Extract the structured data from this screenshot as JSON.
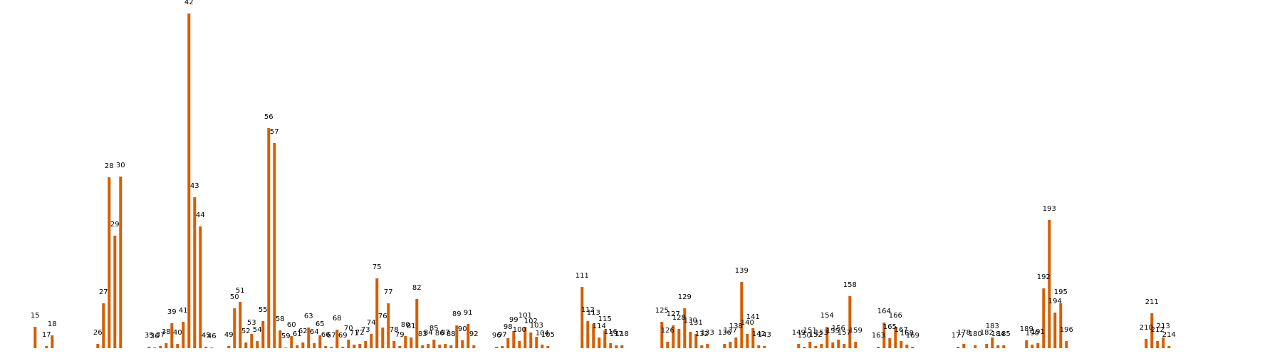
{
  "colors": {
    "bar": "#d55e00",
    "background": "#ffffff",
    "label": "#000000"
  },
  "chart_data": {
    "type": "bar",
    "title": "",
    "xlabel": "",
    "ylabel": "",
    "grid": false,
    "axes_visible": false,
    "x_range": [
      10,
      220
    ],
    "ylim": [
      0,
      460
    ],
    "bars": [
      {
        "x": 15,
        "value": 30,
        "label": "15"
      },
      {
        "x": 17,
        "value": 3,
        "label": "17"
      },
      {
        "x": 18,
        "value": 18,
        "label": "18"
      },
      {
        "x": 26,
        "value": 6,
        "label": "26"
      },
      {
        "x": 27,
        "value": 63,
        "label": "27"
      },
      {
        "x": 28,
        "value": 240,
        "label": "28"
      },
      {
        "x": 29,
        "value": 158,
        "label": "29"
      },
      {
        "x": 30,
        "value": 241,
        "label": "30"
      },
      {
        "x": 35,
        "value": 2,
        "label": "35"
      },
      {
        "x": 36,
        "value": 1,
        "label": "36"
      },
      {
        "x": 37,
        "value": 3,
        "label": "37"
      },
      {
        "x": 38,
        "value": 7,
        "label": "38"
      },
      {
        "x": 39,
        "value": 35,
        "label": "39"
      },
      {
        "x": 40,
        "value": 6,
        "label": "40"
      },
      {
        "x": 41,
        "value": 37,
        "label": "41"
      },
      {
        "x": 42,
        "value": 470,
        "label": "42"
      },
      {
        "x": 43,
        "value": 212,
        "label": "43"
      },
      {
        "x": 44,
        "value": 171,
        "label": "44"
      },
      {
        "x": 45,
        "value": 2,
        "label": "45"
      },
      {
        "x": 46,
        "value": 1,
        "label": "46"
      },
      {
        "x": 49,
        "value": 3,
        "label": "49"
      },
      {
        "x": 50,
        "value": 56,
        "label": "50"
      },
      {
        "x": 51,
        "value": 65,
        "label": "51"
      },
      {
        "x": 52,
        "value": 8,
        "label": "52"
      },
      {
        "x": 53,
        "value": 20,
        "label": "53"
      },
      {
        "x": 54,
        "value": 10,
        "label": "54"
      },
      {
        "x": 55,
        "value": 38,
        "label": "55"
      },
      {
        "x": 56,
        "value": 309,
        "label": "56"
      },
      {
        "x": 57,
        "value": 288,
        "label": "57"
      },
      {
        "x": 58,
        "value": 25,
        "label": "58"
      },
      {
        "x": 59,
        "value": 1,
        "label": "59"
      },
      {
        "x": 60,
        "value": 17,
        "label": "60"
      },
      {
        "x": 61,
        "value": 4,
        "label": "61"
      },
      {
        "x": 62,
        "value": 8,
        "label": "62"
      },
      {
        "x": 63,
        "value": 29,
        "label": "63"
      },
      {
        "x": 64,
        "value": 7,
        "label": "64"
      },
      {
        "x": 65,
        "value": 18,
        "label": "65"
      },
      {
        "x": 66,
        "value": 3,
        "label": "66"
      },
      {
        "x": 67,
        "value": 2,
        "label": "67"
      },
      {
        "x": 68,
        "value": 26,
        "label": "68"
      },
      {
        "x": 69,
        "value": 2,
        "label": "69"
      },
      {
        "x": 70,
        "value": 12,
        "label": "70"
      },
      {
        "x": 71,
        "value": 5,
        "label": "71"
      },
      {
        "x": 72,
        "value": 6,
        "label": "72"
      },
      {
        "x": 73,
        "value": 10,
        "label": "73"
      },
      {
        "x": 74,
        "value": 20,
        "label": "74"
      },
      {
        "x": 75,
        "value": 98,
        "label": "75"
      },
      {
        "x": 76,
        "value": 29,
        "label": "76"
      },
      {
        "x": 77,
        "value": 63,
        "label": "77"
      },
      {
        "x": 78,
        "value": 10,
        "label": "78"
      },
      {
        "x": 79,
        "value": 3,
        "label": "79"
      },
      {
        "x": 80,
        "value": 17,
        "label": "80"
      },
      {
        "x": 81,
        "value": 15,
        "label": "81"
      },
      {
        "x": 82,
        "value": 69,
        "label": "82"
      },
      {
        "x": 83,
        "value": 4,
        "label": "83"
      },
      {
        "x": 84,
        "value": 6,
        "label": "84"
      },
      {
        "x": 85,
        "value": 12,
        "label": "85"
      },
      {
        "x": 86,
        "value": 5,
        "label": "86"
      },
      {
        "x": 87,
        "value": 6,
        "label": "87"
      },
      {
        "x": 88,
        "value": 4,
        "label": "88"
      },
      {
        "x": 89,
        "value": 32,
        "label": "89"
      },
      {
        "x": 90,
        "value": 11,
        "label": "90"
      },
      {
        "x": 91,
        "value": 34,
        "label": "91"
      },
      {
        "x": 92,
        "value": 4,
        "label": "92"
      },
      {
        "x": 96,
        "value": 2,
        "label": "96"
      },
      {
        "x": 97,
        "value": 3,
        "label": "97"
      },
      {
        "x": 98,
        "value": 14,
        "label": "98"
      },
      {
        "x": 99,
        "value": 24,
        "label": "99"
      },
      {
        "x": 100,
        "value": 10,
        "label": "100"
      },
      {
        "x": 101,
        "value": 30,
        "label": "101"
      },
      {
        "x": 102,
        "value": 22,
        "label": "102"
      },
      {
        "x": 103,
        "value": 16,
        "label": "103"
      },
      {
        "x": 104,
        "value": 5,
        "label": "104"
      },
      {
        "x": 105,
        "value": 3,
        "label": "105"
      },
      {
        "x": 111,
        "value": 86,
        "label": "111"
      },
      {
        "x": 112,
        "value": 38,
        "label": "112"
      },
      {
        "x": 113,
        "value": 34,
        "label": "113"
      },
      {
        "x": 114,
        "value": 15,
        "label": "114"
      },
      {
        "x": 115,
        "value": 25,
        "label": "115"
      },
      {
        "x": 116,
        "value": 7,
        "label": "116"
      },
      {
        "x": 117,
        "value": 4,
        "label": "117"
      },
      {
        "x": 118,
        "value": 4,
        "label": "118"
      },
      {
        "x": 125,
        "value": 37,
        "label": "125"
      },
      {
        "x": 126,
        "value": 9,
        "label": "126"
      },
      {
        "x": 127,
        "value": 32,
        "label": "127"
      },
      {
        "x": 128,
        "value": 27,
        "label": "128"
      },
      {
        "x": 129,
        "value": 56,
        "label": "129"
      },
      {
        "x": 130,
        "value": 23,
        "label": "130"
      },
      {
        "x": 131,
        "value": 20,
        "label": "131"
      },
      {
        "x": 132,
        "value": 4,
        "label": "132"
      },
      {
        "x": 133,
        "value": 6,
        "label": "133"
      },
      {
        "x": 136,
        "value": 6,
        "label": "136"
      },
      {
        "x": 137,
        "value": 9,
        "label": "137"
      },
      {
        "x": 138,
        "value": 15,
        "label": "138"
      },
      {
        "x": 139,
        "value": 93,
        "label": "139"
      },
      {
        "x": 140,
        "value": 20,
        "label": "140"
      },
      {
        "x": 141,
        "value": 28,
        "label": "141"
      },
      {
        "x": 142,
        "value": 4,
        "label": "142"
      },
      {
        "x": 143,
        "value": 3,
        "label": "143"
      },
      {
        "x": 149,
        "value": 6,
        "label": "149"
      },
      {
        "x": 150,
        "value": 2,
        "label": "150"
      },
      {
        "x": 151,
        "value": 9,
        "label": "151"
      },
      {
        "x": 152,
        "value": 3,
        "label": "152"
      },
      {
        "x": 153,
        "value": 6,
        "label": "153"
      },
      {
        "x": 154,
        "value": 30,
        "label": "154"
      },
      {
        "x": 155,
        "value": 8,
        "label": "155"
      },
      {
        "x": 156,
        "value": 12,
        "label": "156"
      },
      {
        "x": 157,
        "value": 6,
        "label": "157"
      },
      {
        "x": 158,
        "value": 73,
        "label": "158"
      },
      {
        "x": 159,
        "value": 9,
        "label": "159"
      },
      {
        "x": 163,
        "value": 2,
        "label": "163"
      },
      {
        "x": 164,
        "value": 36,
        "label": "164"
      },
      {
        "x": 165,
        "value": 14,
        "label": "165"
      },
      {
        "x": 166,
        "value": 30,
        "label": "166"
      },
      {
        "x": 167,
        "value": 10,
        "label": "167"
      },
      {
        "x": 168,
        "value": 5,
        "label": "168"
      },
      {
        "x": 169,
        "value": 2,
        "label": "169"
      },
      {
        "x": 177,
        "value": 2,
        "label": "177"
      },
      {
        "x": 178,
        "value": 6,
        "label": "178"
      },
      {
        "x": 180,
        "value": 4,
        "label": "180"
      },
      {
        "x": 182,
        "value": 6,
        "label": "182"
      },
      {
        "x": 183,
        "value": 15,
        "label": "183"
      },
      {
        "x": 184,
        "value": 4,
        "label": "184"
      },
      {
        "x": 185,
        "value": 4,
        "label": "185"
      },
      {
        "x": 189,
        "value": 11,
        "label": "189"
      },
      {
        "x": 190,
        "value": 5,
        "label": "190"
      },
      {
        "x": 191,
        "value": 7,
        "label": "191"
      },
      {
        "x": 192,
        "value": 84,
        "label": "192"
      },
      {
        "x": 193,
        "value": 180,
        "label": "193"
      },
      {
        "x": 194,
        "value": 50,
        "label": "194"
      },
      {
        "x": 195,
        "value": 63,
        "label": "195"
      },
      {
        "x": 196,
        "value": 10,
        "label": "196"
      },
      {
        "x": 210,
        "value": 13,
        "label": "210"
      },
      {
        "x": 211,
        "value": 49,
        "label": "211"
      },
      {
        "x": 212,
        "value": 10,
        "label": "212"
      },
      {
        "x": 213,
        "value": 15,
        "label": "213"
      },
      {
        "x": 214,
        "value": 3,
        "label": "214"
      }
    ]
  }
}
